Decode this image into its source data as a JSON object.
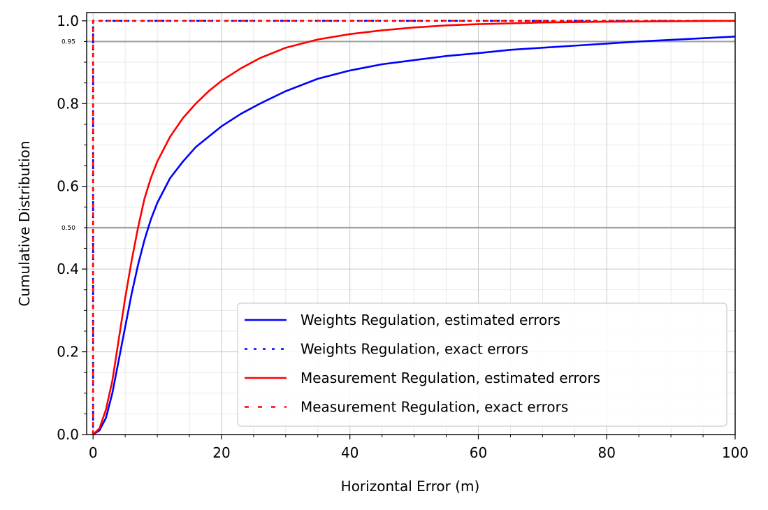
{
  "chart_data": {
    "type": "line",
    "title": "",
    "xlabel": "Horizontal Error (m)",
    "ylabel": "Cumulative Distribution",
    "xlim": [
      -1,
      100
    ],
    "ylim": [
      0,
      1.02
    ],
    "x_ticks": [
      0,
      20,
      40,
      60,
      80,
      100
    ],
    "x_tick_labels": [
      "0",
      "20",
      "40",
      "60",
      "80",
      "100"
    ],
    "y_ticks": [
      0.0,
      0.2,
      0.4,
      0.6,
      0.8,
      1.0
    ],
    "y_tick_labels": [
      "0.0",
      "0.2",
      "0.4",
      "0.6",
      "0.8",
      "1.0"
    ],
    "grid": true,
    "reference_lines": [
      {
        "y": 0.95,
        "label": "0.95"
      },
      {
        "y": 0.5,
        "label": "0.50"
      }
    ],
    "legend_position": "lower-right",
    "series": [
      {
        "name": "Weights Regulation, estimated errors",
        "color": "#0000ff",
        "style": "solid",
        "x": [
          0,
          1,
          2,
          3,
          4,
          5,
          6,
          7,
          8,
          9,
          10,
          12,
          14,
          16,
          18,
          20,
          23,
          26,
          30,
          35,
          40,
          45,
          50,
          55,
          60,
          65,
          70,
          75,
          80,
          85,
          90,
          95,
          100
        ],
        "y": [
          0,
          0.01,
          0.04,
          0.1,
          0.18,
          0.26,
          0.34,
          0.41,
          0.47,
          0.52,
          0.56,
          0.62,
          0.66,
          0.695,
          0.72,
          0.745,
          0.775,
          0.8,
          0.83,
          0.86,
          0.88,
          0.895,
          0.905,
          0.915,
          0.922,
          0.93,
          0.935,
          0.94,
          0.945,
          0.95,
          0.954,
          0.958,
          0.962
        ]
      },
      {
        "name": "Weights Regulation, exact errors",
        "color": "#0000ff",
        "style": "dotted",
        "x": [
          0,
          0,
          100
        ],
        "y": [
          0,
          1.0,
          1.0
        ]
      },
      {
        "name": "Measurement Regulation, estimated errors",
        "color": "#ff0000",
        "style": "solid",
        "x": [
          0,
          1,
          2,
          3,
          4,
          5,
          6,
          7,
          8,
          9,
          10,
          12,
          14,
          16,
          18,
          20,
          23,
          26,
          30,
          35,
          40,
          45,
          50,
          55,
          60,
          65,
          70,
          80,
          90,
          100
        ],
        "y": [
          0,
          0.015,
          0.06,
          0.13,
          0.23,
          0.33,
          0.42,
          0.5,
          0.57,
          0.62,
          0.66,
          0.72,
          0.765,
          0.8,
          0.83,
          0.855,
          0.885,
          0.91,
          0.935,
          0.955,
          0.968,
          0.977,
          0.984,
          0.989,
          0.992,
          0.994,
          0.996,
          0.998,
          0.999,
          1.0
        ]
      },
      {
        "name": "Measurement Regulation, exact errors",
        "color": "#ff0000",
        "style": "dashed",
        "x": [
          0,
          0,
          100
        ],
        "y": [
          0,
          1.0,
          1.0
        ]
      }
    ]
  }
}
